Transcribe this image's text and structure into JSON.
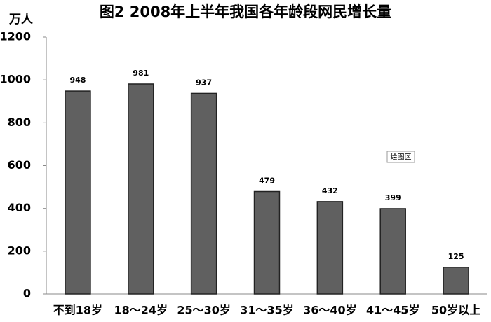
{
  "chart_data": {
    "type": "bar",
    "title": "图2 2008年上半年我国各年龄段网民增长量",
    "y_label": "万人",
    "categories": [
      "不到18岁",
      "18～24岁",
      "25～30岁",
      "31～35岁",
      "36～40岁",
      "41～45岁",
      "50岁以上"
    ],
    "values": [
      948,
      981,
      937,
      479,
      432,
      399,
      125
    ],
    "color": "#606060",
    "ylim": [
      0,
      1200
    ],
    "yticks": [
      0,
      200,
      400,
      600,
      800,
      1000,
      1200
    ],
    "grid": false,
    "annotation": "绘图区"
  }
}
